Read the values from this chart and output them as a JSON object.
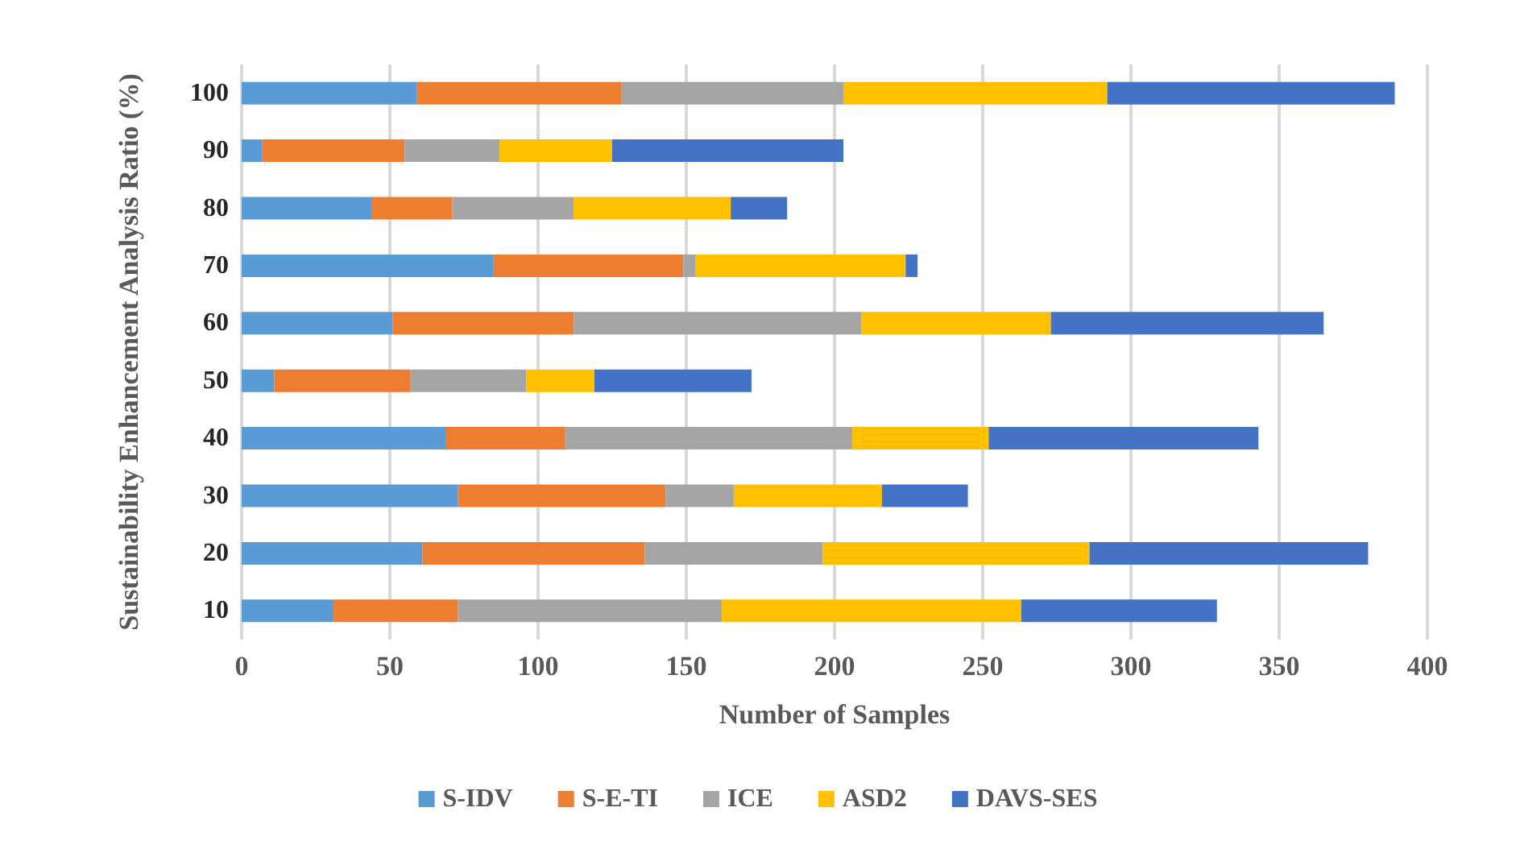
{
  "chart_data": {
    "type": "bar",
    "orientation": "horizontal",
    "stacked": true,
    "ylabel": "Sustainability Enhancement Analysis Ratio (%)",
    "xlabel": "Number of Samples",
    "categories": [
      "100",
      "90",
      "80",
      "70",
      "60",
      "50",
      "40",
      "30",
      "20",
      "10"
    ],
    "xlim": [
      0,
      400
    ],
    "xticks": [
      0,
      50,
      100,
      150,
      200,
      250,
      300,
      350,
      400
    ],
    "grid": "x",
    "legend": "bottom",
    "series": [
      {
        "name": "S-IDV",
        "color": "#5b9bd5",
        "values": [
          59,
          7,
          44,
          85,
          51,
          11,
          69,
          73,
          61,
          31
        ]
      },
      {
        "name": "S-E-TI",
        "color": "#ed7d31",
        "values": [
          69,
          48,
          27,
          64,
          61,
          46,
          40,
          70,
          75,
          42
        ]
      },
      {
        "name": "ICE",
        "color": "#a5a5a5",
        "values": [
          75,
          32,
          41,
          4,
          97,
          39,
          97,
          23,
          60,
          89
        ]
      },
      {
        "name": "ASD2",
        "color": "#ffc000",
        "values": [
          89,
          38,
          53,
          71,
          64,
          23,
          46,
          50,
          90,
          101
        ]
      },
      {
        "name": "DAVS-SES",
        "color": "#4472c4",
        "values": [
          97,
          78,
          19,
          4,
          92,
          53,
          91,
          29,
          94,
          66
        ]
      }
    ]
  }
}
